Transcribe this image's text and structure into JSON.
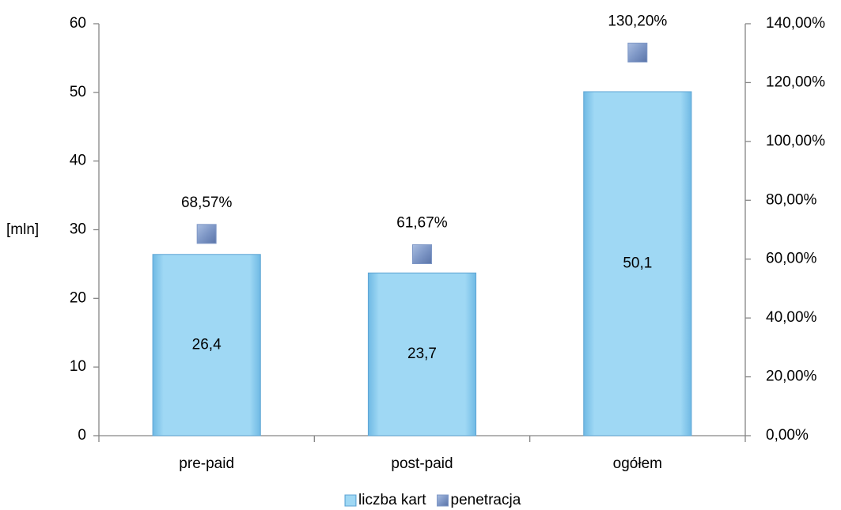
{
  "chart_data": {
    "type": "bar",
    "y_label": "[mln]",
    "categories": [
      "pre-paid",
      "post-paid",
      "ogółem"
    ],
    "series": [
      {
        "name": "liczba kart",
        "color": "#8fd0f0",
        "values": [
          26.4,
          23.7,
          50.1
        ],
        "value_labels": [
          "26,4",
          "23,7",
          "50,1"
        ]
      },
      {
        "name": "penetracja",
        "color": "#7e97c6",
        "axis": "y2",
        "marker": "square",
        "values": [
          68.57,
          61.67,
          130.2
        ],
        "value_labels": [
          "68,57%",
          "61,67%",
          "130,20%"
        ]
      }
    ],
    "ylim": [
      0,
      60
    ],
    "yticks": [
      0,
      10,
      20,
      30,
      40,
      50,
      60
    ],
    "y2lim": [
      0,
      140
    ],
    "y2ticks": [
      {
        "value": 0,
        "label": "0,00%"
      },
      {
        "value": 20,
        "label": "20,00%"
      },
      {
        "value": 40,
        "label": "40,00%"
      },
      {
        "value": 60,
        "label": "60,00%"
      },
      {
        "value": 80,
        "label": "80,00%"
      },
      {
        "value": 100,
        "label": "100,00%"
      },
      {
        "value": 120,
        "label": "120,00%"
      },
      {
        "value": 140,
        "label": "140,00%"
      }
    ],
    "grid": false,
    "legend": "bottom"
  }
}
